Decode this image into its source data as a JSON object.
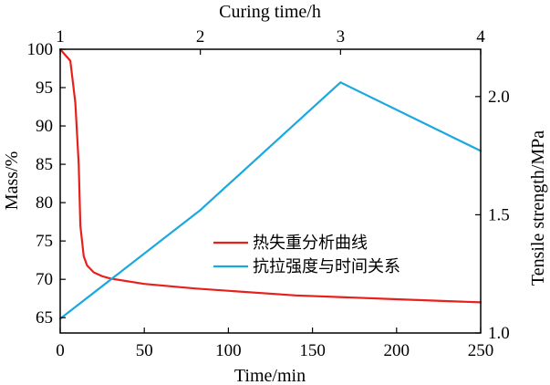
{
  "chart_data": {
    "type": "line",
    "title": "",
    "axes": {
      "bottom": {
        "label": "Time/min",
        "range": [
          0,
          250
        ],
        "ticks": [
          0,
          50,
          100,
          150,
          200,
          250
        ]
      },
      "top": {
        "label": "Curing time/h",
        "range": [
          1,
          4
        ],
        "ticks": [
          1,
          2,
          3,
          4
        ]
      },
      "left": {
        "label": "Mass/%",
        "range": [
          63,
          100
        ],
        "ticks": [
          65,
          70,
          75,
          80,
          85,
          90,
          95,
          100
        ]
      },
      "right": {
        "label": "Tensile strength/MPa",
        "range": [
          1.0,
          2.2
        ],
        "ticks": [
          "1.0",
          "1.5",
          "2.0"
        ]
      }
    },
    "grid": false,
    "legend_position": "center-right",
    "series": [
      {
        "name": "热失重分析曲线",
        "color": "#e8201c",
        "x_axis": "bottom",
        "y_axis": "left",
        "points": [
          [
            0,
            100
          ],
          [
            6,
            98.5
          ],
          [
            9,
            93
          ],
          [
            11,
            85
          ],
          [
            12,
            77
          ],
          [
            14,
            73
          ],
          [
            16,
            71.8
          ],
          [
            20,
            70.9
          ],
          [
            25,
            70.4
          ],
          [
            30,
            70.1
          ],
          [
            50,
            69.4
          ],
          [
            80,
            68.8
          ],
          [
            140,
            67.9
          ],
          [
            200,
            67.4
          ],
          [
            250,
            67.0
          ]
        ]
      },
      {
        "name": "抗拉强度与时间关系",
        "color": "#1ba8e0",
        "x_axis": "top",
        "y_axis": "right",
        "points": [
          [
            1,
            1.06
          ],
          [
            2,
            1.52
          ],
          [
            3,
            2.06
          ],
          [
            4,
            1.77
          ]
        ]
      }
    ]
  }
}
